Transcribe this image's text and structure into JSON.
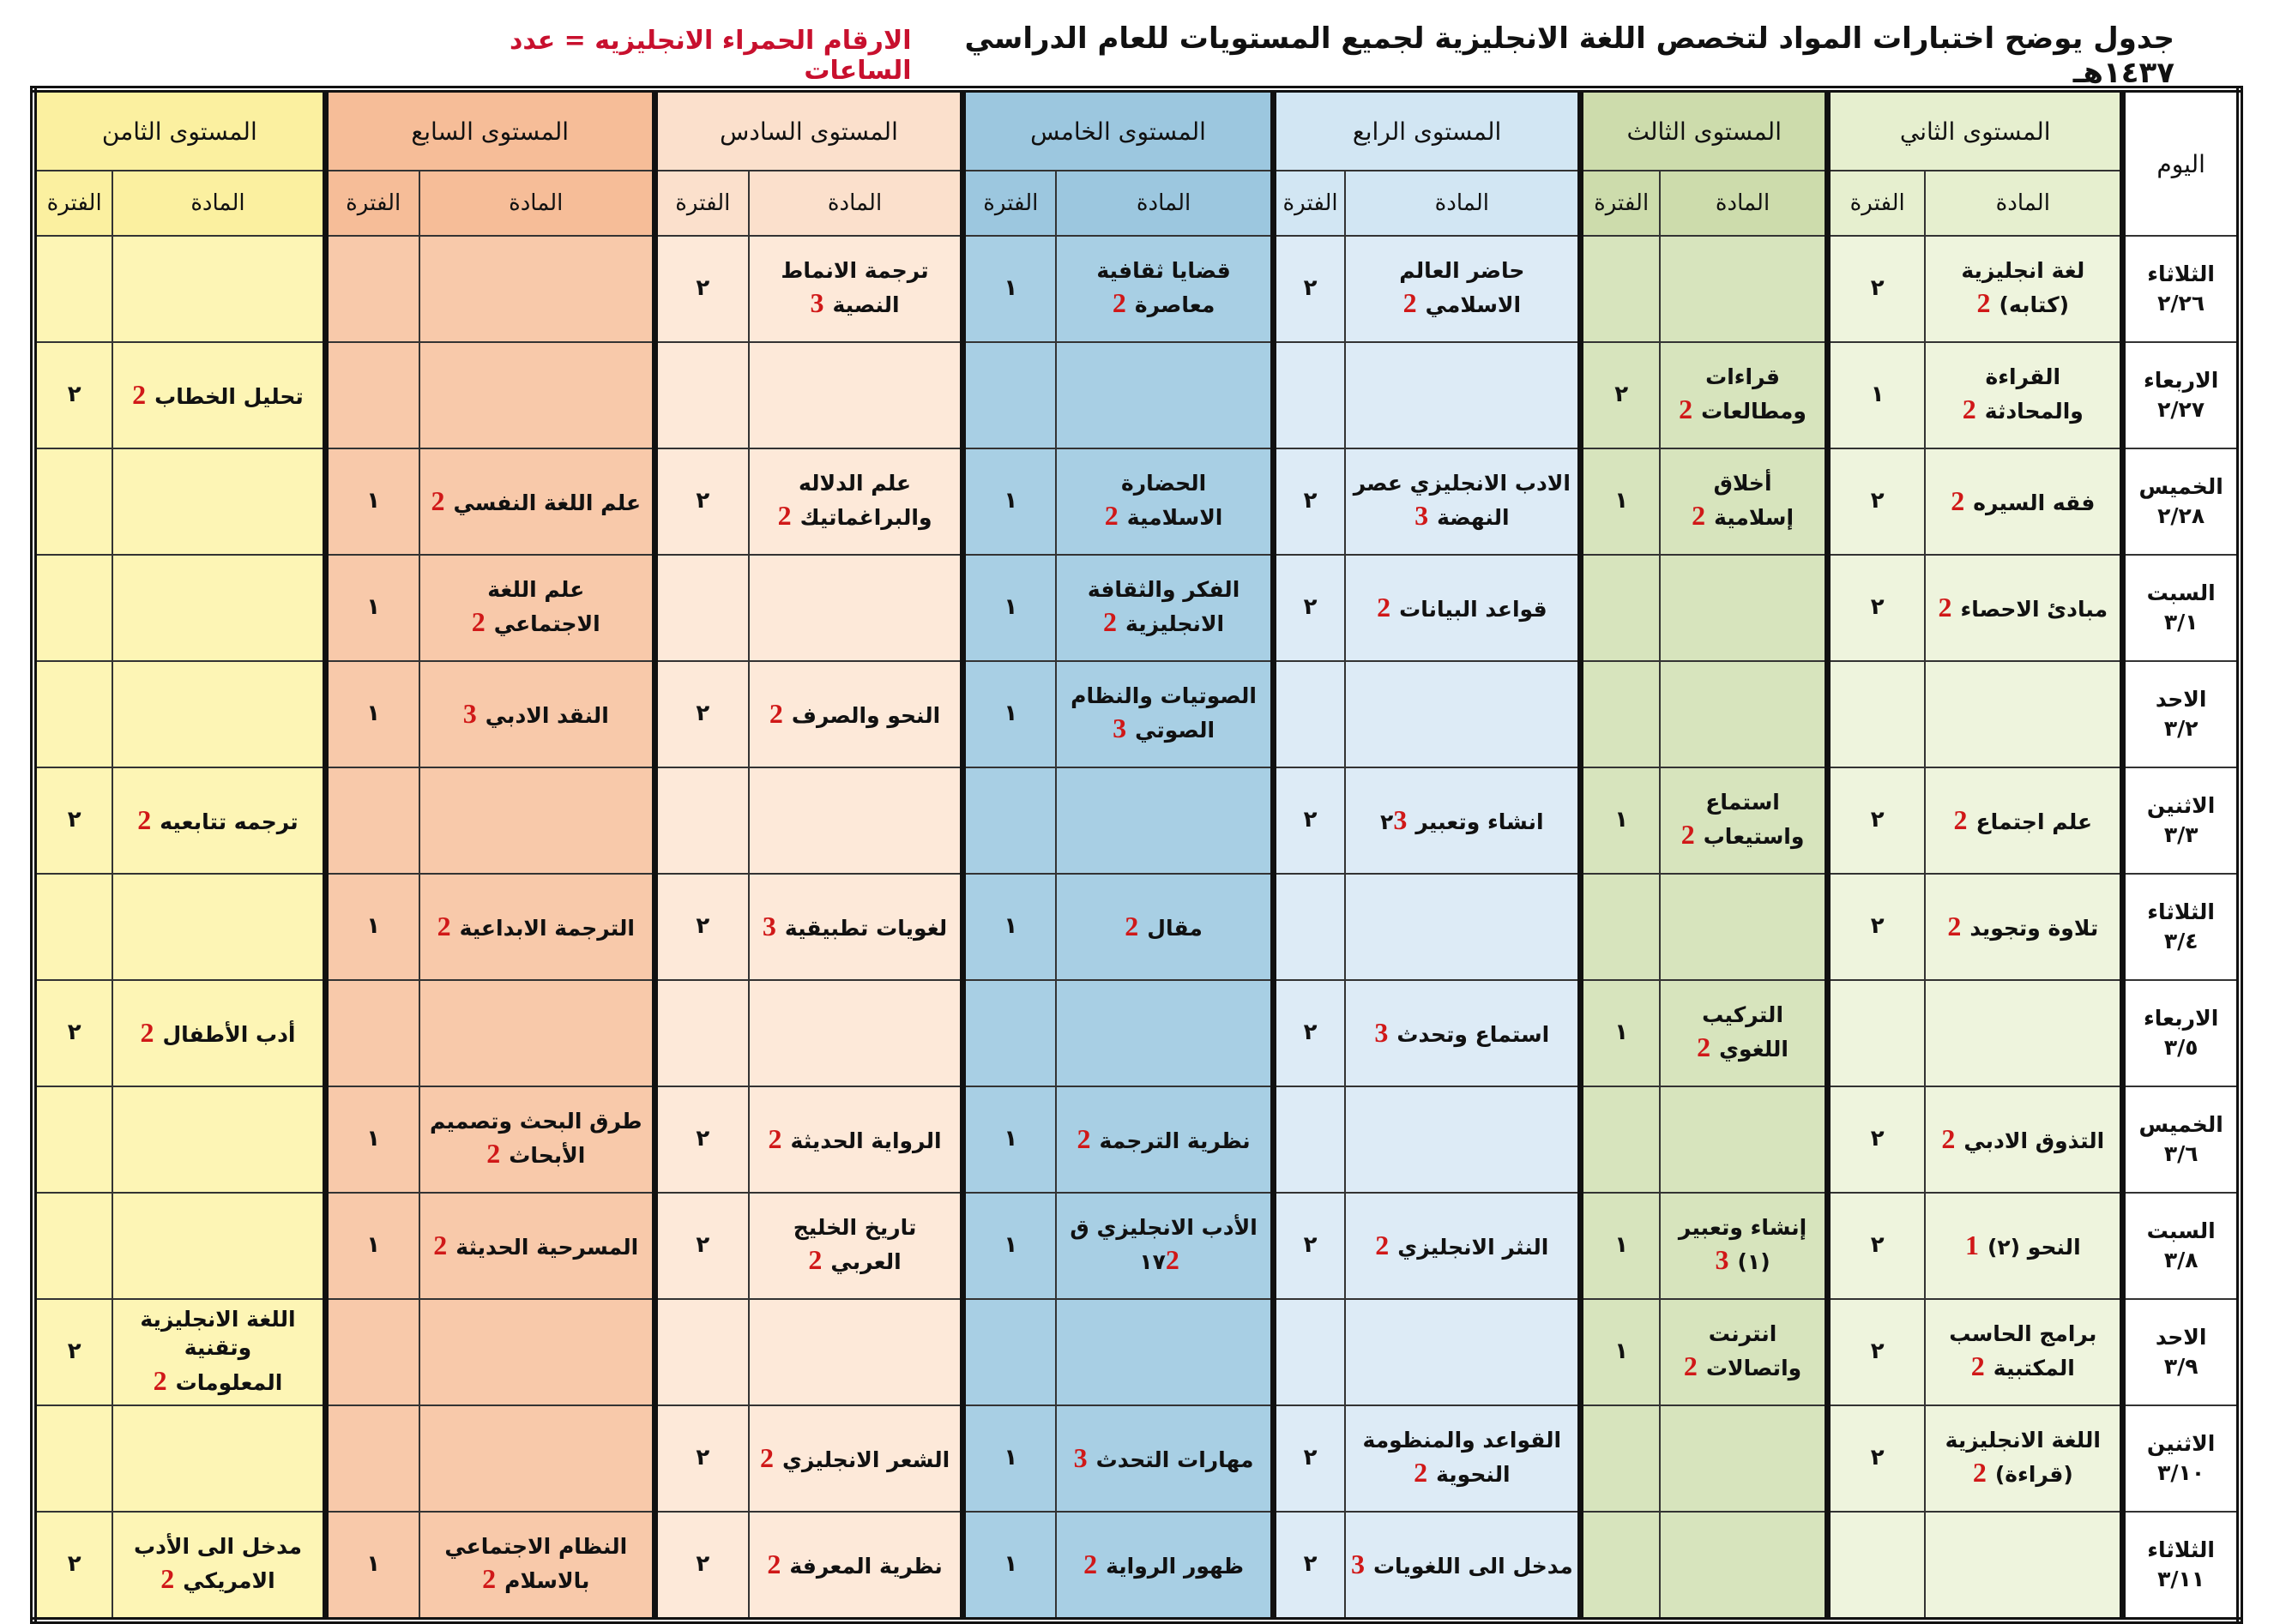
{
  "header": {
    "title": "جدول يوضح اختبارات المواد لتخصص اللغة الانجليزية لجميع المستويات للعام الدراسي ١٤٣٧هـ",
    "note": "الارقام الحمراء الانجليزيه = عدد الساعات"
  },
  "table": {
    "columns": {
      "day": "اليوم",
      "levels": [
        "المستوى الثاني",
        "المستوى الثالث",
        "المستوى الرابع",
        "المستوى الخامس",
        "المستوى السادس",
        "المستوى السابع",
        "المستوى الثامن"
      ],
      "subject": "المادة",
      "period": "الفترة"
    },
    "rows": [
      {
        "day": "الثلاثاء",
        "date": "٢/٢٦",
        "cells": [
          {
            "subject": "لغة انجليزية (كتابه)",
            "hours": 2,
            "period": "٢"
          },
          null,
          {
            "subject": "حاضر العالم الاسلامي",
            "hours": 2,
            "period": "٢"
          },
          {
            "subject": "قضايا ثقافية معاصرة",
            "hours": 2,
            "period": "١"
          },
          {
            "subject": "ترجمة الانماط النصية",
            "hours": 3,
            "period": "٢"
          },
          null,
          null
        ]
      },
      {
        "day": "الاربعاء",
        "date": "٢/٢٧",
        "cells": [
          {
            "subject": "القراءة والمحادثة",
            "hours": 2,
            "period": "١"
          },
          {
            "subject": "قراءات ومطالعات",
            "hours": 2,
            "period": "٢"
          },
          null,
          null,
          null,
          null,
          {
            "subject": "تحليل الخطاب",
            "hours": 2,
            "period": "٢"
          }
        ]
      },
      {
        "day": "الخميس",
        "date": "٢/٢٨",
        "cells": [
          {
            "subject": "فقه السيره",
            "hours": 2,
            "period": "٢"
          },
          {
            "subject": "أخلاق إسلامية",
            "hours": 2,
            "period": "١"
          },
          {
            "subject": "الادب الانجليزي عصر النهضة",
            "hours": 3,
            "period": "٢"
          },
          {
            "subject": "الحضارة الاسلامية",
            "hours": 2,
            "period": "١"
          },
          {
            "subject": "علم الدلاله والبراغماتيك",
            "hours": 2,
            "period": "٢"
          },
          {
            "subject": "علم اللغة النفسي",
            "hours": 2,
            "period": "١"
          },
          null
        ]
      },
      {
        "day": "السبت",
        "date": "٣/١",
        "cells": [
          {
            "subject": "مبادئ الاحصاء",
            "hours": 2,
            "period": "٢"
          },
          null,
          {
            "subject": "قواعد البيانات",
            "hours": 2,
            "period": "٢"
          },
          {
            "subject": "الفكر والثقافة الانجليزية",
            "hours": 2,
            "period": "١"
          },
          null,
          {
            "subject": "علم اللغة الاجتماعي",
            "hours": 2,
            "period": "١"
          },
          null
        ]
      },
      {
        "day": "الاحد",
        "date": "٣/٢",
        "cells": [
          null,
          null,
          null,
          {
            "subject": "الصوتيات والنظام الصوتي",
            "hours": 3,
            "period": "١"
          },
          {
            "subject": "النحو والصرف",
            "hours": 2,
            "period": "٢"
          },
          {
            "subject": "النقد الادبي",
            "hours": 3,
            "period": "١"
          },
          null
        ]
      },
      {
        "day": "الاثنين",
        "date": "٣/٣",
        "cells": [
          {
            "subject": "علم اجتماع",
            "hours": 2,
            "period": "٢"
          },
          {
            "subject": "استماع واستيعاب",
            "hours": 2,
            "period": "١"
          },
          {
            "subject": "انشاء وتعبير٢",
            "hours": 3,
            "period": "٢"
          },
          null,
          null,
          null,
          {
            "subject": "ترجمه تتابعيه",
            "hours": 2,
            "period": "٢"
          }
        ]
      },
      {
        "day": "الثلاثاء",
        "date": "٣/٤",
        "cells": [
          {
            "subject": "تلاوة وتجويد",
            "hours": 2,
            "period": "٢"
          },
          null,
          null,
          {
            "subject": "مقال",
            "hours": 2,
            "period": "١"
          },
          {
            "subject": "لغويات تطبيقية",
            "hours": 3,
            "period": "٢"
          },
          {
            "subject": "الترجمة الابداعية",
            "hours": 2,
            "period": "١"
          },
          null
        ]
      },
      {
        "day": "الاربعاء",
        "date": "٣/٥",
        "cells": [
          null,
          {
            "subject": "التركيب اللغوي",
            "hours": 2,
            "period": "١"
          },
          {
            "subject": "استماع وتحدث",
            "hours": 3,
            "period": "٢"
          },
          null,
          null,
          null,
          {
            "subject": "أدب الأطفال",
            "hours": 2,
            "period": "٢"
          }
        ]
      },
      {
        "day": "الخميس",
        "date": "٣/٦",
        "cells": [
          {
            "subject": "التذوق الادبي",
            "hours": 2,
            "period": "٢"
          },
          null,
          null,
          {
            "subject": "نظرية الترجمة",
            "hours": 2,
            "period": "١"
          },
          {
            "subject": "الرواية الحديثة",
            "hours": 2,
            "period": "٢"
          },
          {
            "subject": "طرق البحث وتصميم الأبحاث",
            "hours": 2,
            "period": "١"
          },
          null
        ]
      },
      {
        "day": "السبت",
        "date": "٣/٨",
        "cells": [
          {
            "subject": "النحو (٢)",
            "hours": 1,
            "period": "٢"
          },
          {
            "subject": "إنشاء وتعبير (١)",
            "hours": 3,
            "period": "١"
          },
          {
            "subject": "النثر الانجليزي",
            "hours": 2,
            "period": "٢"
          },
          {
            "subject": "الأدب الانجليزي ق ١٧",
            "hours": 2,
            "period": "١"
          },
          {
            "subject": "تاريخ الخليج العربي",
            "hours": 2,
            "period": "٢"
          },
          {
            "subject": "المسرحية الحديثة",
            "hours": 2,
            "period": "١"
          },
          null
        ]
      },
      {
        "day": "الاحد",
        "date": "٣/٩",
        "cells": [
          {
            "subject": "برامج الحاسب المكتبية",
            "hours": 2,
            "period": "٢"
          },
          {
            "subject": "انترنت واتصالات",
            "hours": 2,
            "period": "١"
          },
          null,
          null,
          null,
          null,
          {
            "subject": "اللغة الانجليزية وتقنية المعلومات",
            "hours": 2,
            "period": "٢"
          }
        ]
      },
      {
        "day": "الاثنين",
        "date": "٣/١٠",
        "cells": [
          {
            "subject": "اللغة الانجليزية (قراءة)",
            "hours": 2,
            "period": "٢"
          },
          null,
          {
            "subject": "القواعد والمنظومة النحوية",
            "hours": 2,
            "period": "٢"
          },
          {
            "subject": "مهارات التحدث",
            "hours": 3,
            "period": "١"
          },
          {
            "subject": "الشعر الانجليزي",
            "hours": 2,
            "period": "٢"
          },
          null,
          null
        ]
      },
      {
        "day": "الثلاثاء",
        "date": "٣/١١",
        "cells": [
          null,
          null,
          {
            "subject": "مدخل الى اللغويات",
            "hours": 3,
            "period": "٢"
          },
          {
            "subject": "ظهور الرواية",
            "hours": 2,
            "period": "١"
          },
          {
            "subject": "نظرية المعرفة",
            "hours": 2,
            "period": "٢"
          },
          {
            "subject": "النظام الاجتماعي بالاسلام",
            "hours": 2,
            "period": "١"
          },
          {
            "subject": "مدخل الى الأدب الامريكي",
            "hours": 2,
            "period": "٢"
          }
        ]
      }
    ]
  }
}
